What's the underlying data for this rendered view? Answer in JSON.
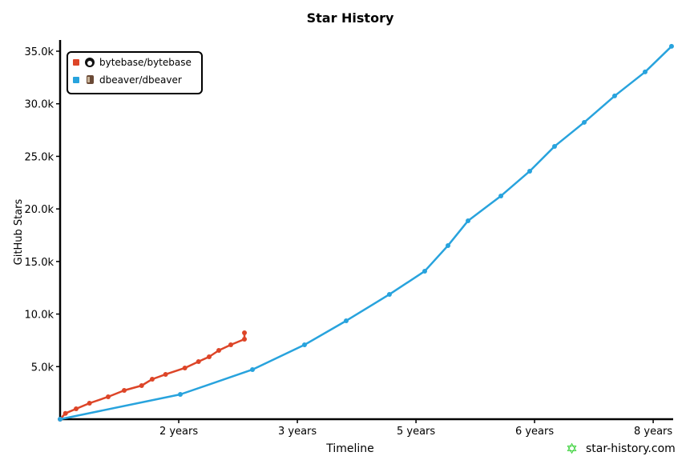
{
  "chart_data": {
    "type": "line",
    "title": "Star History",
    "xlabel": "Timeline",
    "ylabel": "GitHub Stars",
    "ylim": [
      0,
      35000
    ],
    "xlim": [
      0,
      8.47
    ],
    "grid": false,
    "legend_placement": "top-left",
    "x_ticks": [
      {
        "value": 1.643,
        "label": "2 years"
      },
      {
        "value": 3.286,
        "label": "3 years"
      },
      {
        "value": 4.929,
        "label": "5 years"
      },
      {
        "value": 6.571,
        "label": "6 years"
      },
      {
        "value": 8.214,
        "label": "8 years"
      }
    ],
    "y_ticks": [
      {
        "value": 5000,
        "label": "5.0k"
      },
      {
        "value": 10000,
        "label": "10.0k"
      },
      {
        "value": 15000,
        "label": "15.0k"
      },
      {
        "value": 20000,
        "label": "20.0k"
      },
      {
        "value": 25000,
        "label": "25.0k"
      },
      {
        "value": 30000,
        "label": "30.0k"
      },
      {
        "value": 35000,
        "label": "35.0k"
      }
    ],
    "series": [
      {
        "name": "bytebase/bytebase",
        "color": "#dd4528",
        "icon": "github-icon",
        "x": [
          0,
          0.074,
          0.222,
          0.407,
          0.666,
          0.888,
          1.129,
          1.276,
          1.461,
          1.728,
          1.917,
          2.064,
          2.198,
          2.364,
          2.553,
          2.553
        ],
        "y": [
          0,
          556,
          989,
          1522,
          2131,
          2740,
          3196,
          3805,
          4262,
          4871,
          5480,
          5936,
          6545,
          7078,
          7611,
          8220
        ]
      },
      {
        "name": "dbeaver/dbeaver",
        "color": "#28a3dd",
        "icon": "dbeaver-avatar-icon",
        "x": [
          0,
          1.665,
          2.664,
          3.385,
          3.962,
          4.561,
          5.05,
          5.372,
          5.65,
          6.105,
          6.504,
          6.848,
          7.259,
          7.68,
          8.102,
          8.468
        ],
        "y": [
          0,
          2359,
          4718,
          7077,
          9360,
          11872,
          14079,
          16514,
          18873,
          21232,
          23591,
          25950,
          28233,
          30744,
          33027,
          35462
        ]
      }
    ]
  },
  "footer": {
    "brand": "star-history.com",
    "brand_icon": "star-icon",
    "brand_color": "#2fcf2f"
  }
}
